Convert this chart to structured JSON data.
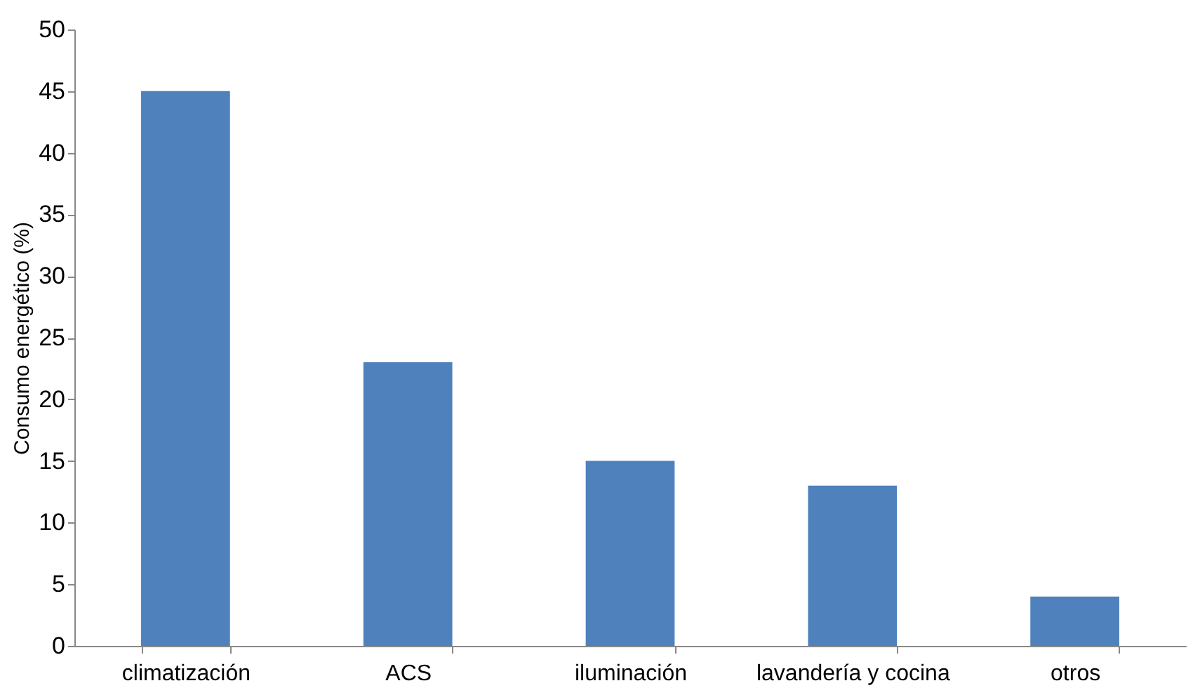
{
  "chart_data": {
    "type": "bar",
    "ylabel": "Consumo energético (%)",
    "categories": [
      "climatización",
      "ACS",
      "iluminación",
      "lavandería y cocina",
      "otros"
    ],
    "values": [
      45,
      23,
      15,
      13,
      4
    ],
    "color": "#4f81bd",
    "ylim": [
      0,
      50
    ],
    "yticks": [
      0,
      5,
      10,
      15,
      20,
      25,
      30,
      35,
      40,
      45,
      50
    ],
    "grid": false
  }
}
